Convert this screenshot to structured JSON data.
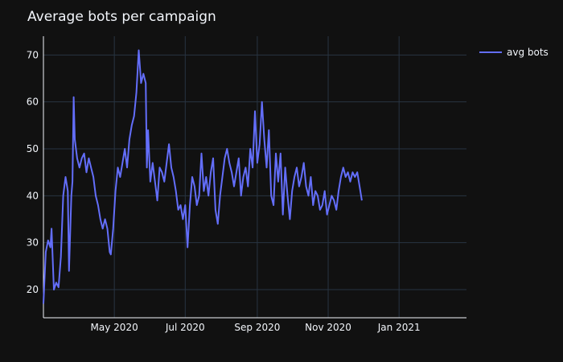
{
  "chart_data": {
    "type": "line",
    "title": "Average bots per campaign",
    "xlabel": "",
    "ylabel": "",
    "x_range": [
      "2020-03-01",
      "2021-02-28"
    ],
    "ylim": [
      14,
      74
    ],
    "y_ticks": [
      20,
      30,
      40,
      50,
      60,
      70
    ],
    "x_ticks": [
      {
        "date": "2020-05-01",
        "label": "May 2020"
      },
      {
        "date": "2020-07-01",
        "label": "Jul 2020"
      },
      {
        "date": "2020-09-01",
        "label": "Sep 2020"
      },
      {
        "date": "2020-11-01",
        "label": "Nov 2020"
      },
      {
        "date": "2021-01-01",
        "label": "Jan 2021"
      }
    ],
    "grid": true,
    "legend_position": "top-right",
    "background": "#111111",
    "grid_color": "#283442",
    "series": [
      {
        "name": "avg bots",
        "color": "#636efa",
        "points": [
          [
            "2020-03-01",
            17.0
          ],
          [
            "2020-03-03",
            28.0
          ],
          [
            "2020-03-05",
            30.5
          ],
          [
            "2020-03-07",
            29.0
          ],
          [
            "2020-03-08",
            33.0
          ],
          [
            "2020-03-10",
            20.0
          ],
          [
            "2020-03-12",
            21.5
          ],
          [
            "2020-03-14",
            20.5
          ],
          [
            "2020-03-16",
            27.0
          ],
          [
            "2020-03-18",
            40.0
          ],
          [
            "2020-03-20",
            44.0
          ],
          [
            "2020-03-22",
            41.0
          ],
          [
            "2020-03-23",
            24.0
          ],
          [
            "2020-03-25",
            40.0
          ],
          [
            "2020-03-26",
            43.0
          ],
          [
            "2020-03-27",
            61.0
          ],
          [
            "2020-03-28",
            52.0
          ],
          [
            "2020-03-30",
            48.0
          ],
          [
            "2020-04-01",
            46.0
          ],
          [
            "2020-04-03",
            48.0
          ],
          [
            "2020-04-05",
            49.0
          ],
          [
            "2020-04-07",
            45.0
          ],
          [
            "2020-04-09",
            48.0
          ],
          [
            "2020-04-11",
            46.0
          ],
          [
            "2020-04-13",
            44.0
          ],
          [
            "2020-04-15",
            40.0
          ],
          [
            "2020-04-17",
            38.0
          ],
          [
            "2020-04-19",
            35.0
          ],
          [
            "2020-04-21",
            33.0
          ],
          [
            "2020-04-23",
            35.0
          ],
          [
            "2020-04-25",
            33.0
          ],
          [
            "2020-04-27",
            28.0
          ],
          [
            "2020-04-28",
            27.5
          ],
          [
            "2020-04-30",
            33.0
          ],
          [
            "2020-05-02",
            41.0
          ],
          [
            "2020-05-04",
            46.0
          ],
          [
            "2020-05-06",
            44.0
          ],
          [
            "2020-05-08",
            47.0
          ],
          [
            "2020-05-10",
            50.0
          ],
          [
            "2020-05-12",
            46.0
          ],
          [
            "2020-05-14",
            52.0
          ],
          [
            "2020-05-16",
            55.0
          ],
          [
            "2020-05-18",
            57.0
          ],
          [
            "2020-05-20",
            62.0
          ],
          [
            "2020-05-22",
            71.0
          ],
          [
            "2020-05-24",
            64.0
          ],
          [
            "2020-05-26",
            66.0
          ],
          [
            "2020-05-28",
            64.0
          ],
          [
            "2020-05-29",
            46.0
          ],
          [
            "2020-05-30",
            54.0
          ],
          [
            "2020-06-01",
            43.0
          ],
          [
            "2020-06-03",
            47.0
          ],
          [
            "2020-06-05",
            43.0
          ],
          [
            "2020-06-07",
            39.0
          ],
          [
            "2020-06-09",
            46.0
          ],
          [
            "2020-06-11",
            45.0
          ],
          [
            "2020-06-13",
            43.0
          ],
          [
            "2020-06-15",
            47.0
          ],
          [
            "2020-06-17",
            51.0
          ],
          [
            "2020-06-19",
            46.0
          ],
          [
            "2020-06-21",
            44.0
          ],
          [
            "2020-06-23",
            41.0
          ],
          [
            "2020-06-25",
            37.0
          ],
          [
            "2020-06-27",
            38.0
          ],
          [
            "2020-06-29",
            35.0
          ],
          [
            "2020-07-01",
            38.0
          ],
          [
            "2020-07-03",
            29.0
          ],
          [
            "2020-07-05",
            38.0
          ],
          [
            "2020-07-07",
            44.0
          ],
          [
            "2020-07-09",
            42.0
          ],
          [
            "2020-07-11",
            38.0
          ],
          [
            "2020-07-13",
            40.0
          ],
          [
            "2020-07-15",
            49.0
          ],
          [
            "2020-07-17",
            41.0
          ],
          [
            "2020-07-19",
            44.0
          ],
          [
            "2020-07-21",
            40.0
          ],
          [
            "2020-07-23",
            45.0
          ],
          [
            "2020-07-25",
            48.0
          ],
          [
            "2020-07-27",
            37.0
          ],
          [
            "2020-07-29",
            34.0
          ],
          [
            "2020-07-31",
            40.0
          ],
          [
            "2020-08-02",
            44.0
          ],
          [
            "2020-08-04",
            48.0
          ],
          [
            "2020-08-06",
            50.0
          ],
          [
            "2020-08-08",
            47.0
          ],
          [
            "2020-08-10",
            45.0
          ],
          [
            "2020-08-12",
            42.0
          ],
          [
            "2020-08-14",
            45.0
          ],
          [
            "2020-08-16",
            48.0
          ],
          [
            "2020-08-18",
            40.0
          ],
          [
            "2020-08-20",
            44.0
          ],
          [
            "2020-08-22",
            46.0
          ],
          [
            "2020-08-24",
            42.0
          ],
          [
            "2020-08-26",
            50.0
          ],
          [
            "2020-08-28",
            46.0
          ],
          [
            "2020-08-30",
            58.0
          ],
          [
            "2020-09-01",
            47.0
          ],
          [
            "2020-09-03",
            51.0
          ],
          [
            "2020-09-05",
            60.0
          ],
          [
            "2020-09-07",
            52.0
          ],
          [
            "2020-09-09",
            46.0
          ],
          [
            "2020-09-11",
            54.0
          ],
          [
            "2020-09-13",
            40.0
          ],
          [
            "2020-09-15",
            38.0
          ],
          [
            "2020-09-17",
            49.0
          ],
          [
            "2020-09-19",
            43.0
          ],
          [
            "2020-09-21",
            49.0
          ],
          [
            "2020-09-23",
            36.0
          ],
          [
            "2020-09-25",
            46.0
          ],
          [
            "2020-09-27",
            40.0
          ],
          [
            "2020-09-29",
            35.0
          ],
          [
            "2020-10-01",
            41.0
          ],
          [
            "2020-10-03",
            44.0
          ],
          [
            "2020-10-05",
            46.0
          ],
          [
            "2020-10-07",
            42.0
          ],
          [
            "2020-10-09",
            44.0
          ],
          [
            "2020-10-11",
            47.0
          ],
          [
            "2020-10-13",
            42.0
          ],
          [
            "2020-10-15",
            40.0
          ],
          [
            "2020-10-17",
            44.0
          ],
          [
            "2020-10-19",
            38.0
          ],
          [
            "2020-10-21",
            41.0
          ],
          [
            "2020-10-23",
            40.0
          ],
          [
            "2020-10-25",
            37.0
          ],
          [
            "2020-10-27",
            38.0
          ],
          [
            "2020-10-29",
            41.0
          ],
          [
            "2020-10-31",
            36.0
          ],
          [
            "2020-11-02",
            38.0
          ],
          [
            "2020-11-04",
            40.0
          ],
          [
            "2020-11-06",
            39.0
          ],
          [
            "2020-11-08",
            37.0
          ],
          [
            "2020-11-10",
            41.0
          ],
          [
            "2020-11-12",
            44.0
          ],
          [
            "2020-11-14",
            46.0
          ],
          [
            "2020-11-16",
            44.0
          ],
          [
            "2020-11-18",
            45.0
          ],
          [
            "2020-11-20",
            43.0
          ],
          [
            "2020-11-22",
            45.0
          ],
          [
            "2020-11-24",
            44.0
          ],
          [
            "2020-11-26",
            45.0
          ],
          [
            "2020-11-28",
            42.0
          ],
          [
            "2020-11-30",
            39.0
          ]
        ]
      }
    ]
  }
}
